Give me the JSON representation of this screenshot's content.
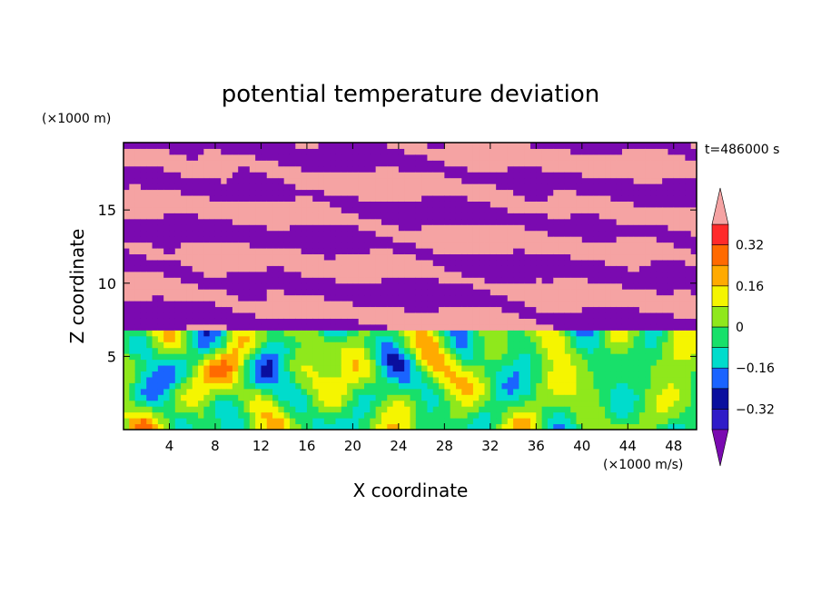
{
  "chart_data": {
    "type": "heatmap",
    "title": "potential temperature deviation",
    "xlabel": "X coordinate",
    "ylabel": "Z coordinate",
    "x_unit": "(×1000 m/s)",
    "y_unit": "(×1000 m)",
    "time_label": "t=486000 s",
    "xlim": [
      0,
      50
    ],
    "ylim": [
      0,
      19.6
    ],
    "x_ticks": [
      4,
      8,
      12,
      16,
      20,
      24,
      28,
      32,
      36,
      40,
      44,
      48
    ],
    "y_ticks": [
      5,
      10,
      15
    ],
    "colorbar": {
      "levels": [
        -0.4,
        -0.32,
        -0.24,
        -0.16,
        -0.08,
        0,
        0.08,
        0.16,
        0.24,
        0.32,
        0.4
      ],
      "tick_values": [
        0.32,
        0.16,
        0,
        -0.16,
        -0.32
      ],
      "tick_labels": [
        "0.32",
        "0.16",
        "0",
        "−0.16",
        "−0.32"
      ],
      "colors": [
        "#7a0ab0",
        "#2f1bc8",
        "#0a0f9e",
        "#1a64ff",
        "#00dccc",
        "#18e06a",
        "#8fe81c",
        "#f5f500",
        "#ffaa00",
        "#ff6a00",
        "#ff2a2a",
        "#f5a3a3"
      ],
      "extend": "both"
    },
    "field_description_regions": {
      "upper_layer_z": [
        7,
        19.6
      ],
      "upper_layer_values": [
        -0.45,
        0.45
      ],
      "lower_layer_z": [
        0,
        7
      ],
      "lower_layer_values": [
        -0.36,
        0.3
      ]
    }
  }
}
